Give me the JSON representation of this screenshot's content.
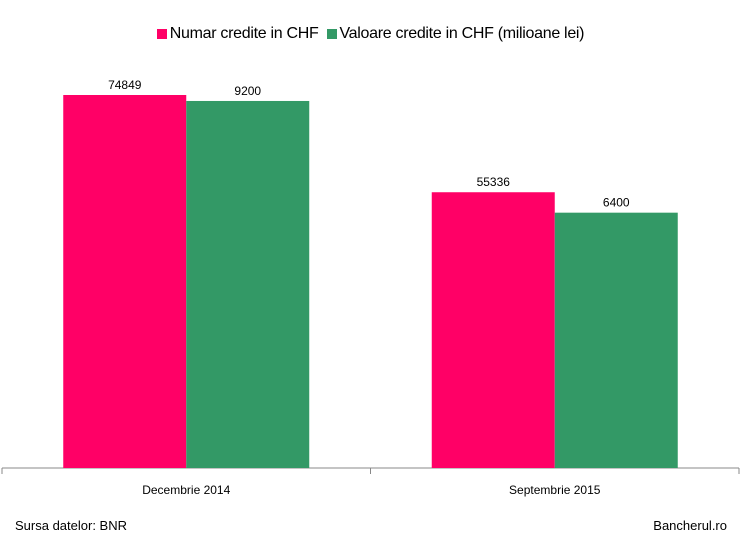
{
  "chart_data": {
    "type": "bar",
    "categories": [
      "Decembrie 2014",
      "Septembrie 2015"
    ],
    "series": [
      {
        "name": "Numar credite in CHF",
        "values": [
          74849,
          55336
        ],
        "color": "#ff0066"
      },
      {
        "name": "Valoare credite in CHF (milioane lei)",
        "values": [
          9200,
          6400
        ],
        "color": "#339966"
      }
    ],
    "data_labels": true,
    "legend_position": "top",
    "grid": false
  },
  "footer": {
    "source": "Sursa datelor: BNR",
    "brand": "Bancherul.ro"
  }
}
